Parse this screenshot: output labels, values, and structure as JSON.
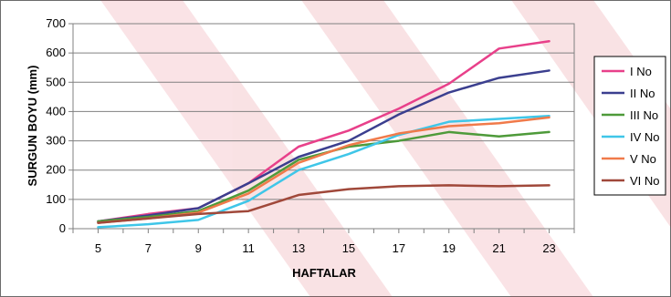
{
  "chart_data": {
    "type": "line",
    "xlabel": "HAFTALAR",
    "ylabel": "SURGUN BOYU (mm)",
    "x": [
      5,
      7,
      9,
      11,
      13,
      15,
      17,
      19,
      21,
      23
    ],
    "xlim": [
      4,
      24
    ],
    "ylim": [
      0,
      700
    ],
    "yticks": [
      0,
      100,
      200,
      300,
      400,
      500,
      600,
      700
    ],
    "xticks": [
      5,
      7,
      9,
      11,
      13,
      15,
      17,
      19,
      21,
      23
    ],
    "grid": true,
    "legend": "right",
    "series": [
      {
        "name": "I No",
        "color": "#e8408a",
        "values": [
          25,
          50,
          70,
          155,
          280,
          335,
          410,
          495,
          615,
          640
        ]
      },
      {
        "name": "II No",
        "color": "#3b3f8f",
        "values": [
          25,
          45,
          70,
          155,
          245,
          300,
          390,
          465,
          515,
          540
        ]
      },
      {
        "name": "III No",
        "color": "#4e9a3a",
        "values": [
          25,
          40,
          60,
          130,
          235,
          280,
          300,
          330,
          315,
          330
        ]
      },
      {
        "name": "IV No",
        "color": "#3fc6e8",
        "values": [
          5,
          15,
          30,
          95,
          200,
          255,
          320,
          365,
          375,
          385
        ]
      },
      {
        "name": "V No",
        "color": "#f07a4a",
        "values": [
          20,
          35,
          55,
          120,
          225,
          285,
          325,
          350,
          360,
          380
        ]
      },
      {
        "name": "VI No",
        "color": "#a0483a",
        "values": [
          20,
          35,
          50,
          60,
          115,
          135,
          145,
          148,
          145,
          148
        ]
      }
    ]
  }
}
